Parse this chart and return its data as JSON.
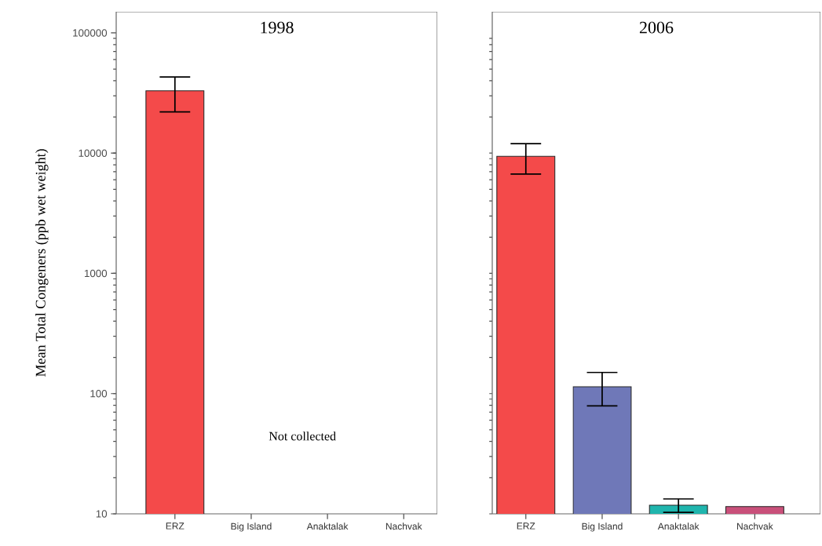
{
  "chart_data": [
    {
      "type": "bar",
      "title": "1998",
      "ylabel": "Mean Total Congeners (ppb wet weight)",
      "categories": [
        "ERZ",
        "Big Island",
        "Anaktalak",
        "Nachvak"
      ],
      "values": [
        33000,
        null,
        null,
        null
      ],
      "errors": [
        [
          22000,
          43000
        ],
        null,
        null,
        null
      ],
      "colors": [
        "#f44a4a",
        "#6f78b8",
        "#1fb5ad",
        "#c9507a"
      ],
      "log": true,
      "ylim": [
        10,
        150000
      ],
      "yticks": [
        10,
        100,
        1000,
        10000,
        100000
      ],
      "annotations": [
        "Not collected"
      ]
    },
    {
      "type": "bar",
      "title": "2006",
      "categories": [
        "ERZ",
        "Big Island",
        "Anaktalak",
        "Nachvak"
      ],
      "values": [
        9400,
        114,
        11.8,
        11.5
      ],
      "errors": [
        [
          6700,
          12000
        ],
        [
          79,
          150
        ],
        [
          10.3,
          13.3
        ],
        null
      ],
      "colors": [
        "#f44a4a",
        "#6f78b8",
        "#1fb5ad",
        "#c9507a"
      ],
      "log": true,
      "ylim": [
        10,
        150000
      ],
      "yticks": [
        10,
        100,
        1000,
        10000,
        100000
      ],
      "tick_labels": "x"
    }
  ]
}
